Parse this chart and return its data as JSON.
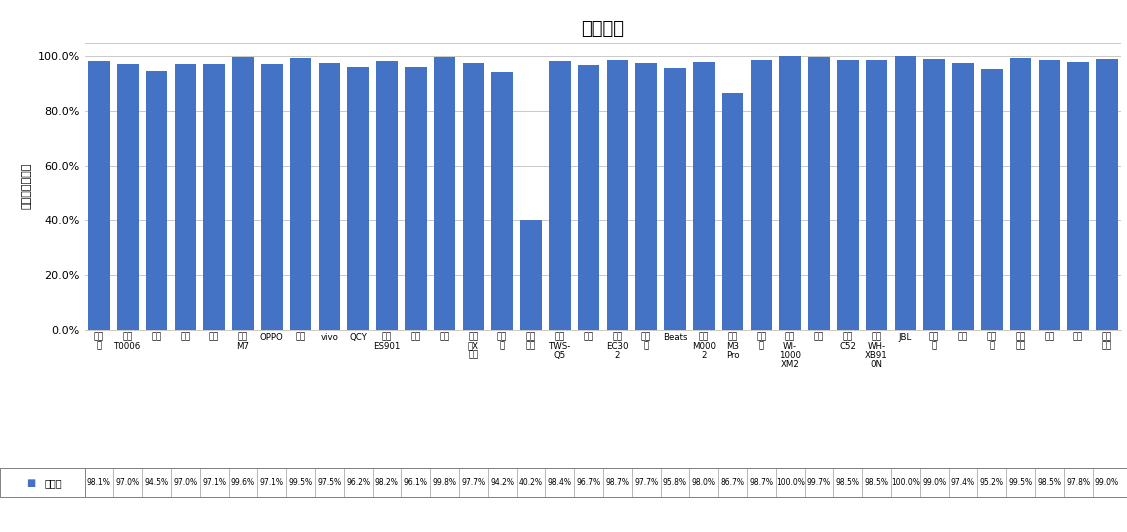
{
  "title": "通话降噪",
  "ylabel": "主观测试正确率",
  "categories": [
    "漫步\n者",
    "华为\nT0006",
    "苹果",
    "小米",
    "倍思",
    "酷狗\nM7",
    "OPPO",
    "荣耀",
    "vivo",
    "QCY",
    "万魔\nES901",
    "小度",
    "雷蛇",
    "漫步\n者X\n芯心",
    "潮客\n能",
    "科大\n讯飞",
    "纽曼\nTWS-\nQ5",
    "三星",
    "万魔\nEC30\n2",
    "搜波\n明",
    "Beats",
    "华为\nM000\n2",
    "酷狗\nM3\nPro",
    "爱国\n者",
    "索尼\nWI-\n1000\nXM2",
    "山水",
    "纽曼\nC52",
    "索尼\nWH-\nXB91\n0N",
    "JBL",
    "飞利\n浦",
    "联想",
    "铁三\n角",
    "森海\n塞尔",
    "博士",
    "索爱",
    "西伯\n利亚"
  ],
  "values": [
    98.1,
    97.0,
    94.5,
    97.0,
    97.1,
    99.6,
    97.1,
    99.5,
    97.5,
    96.2,
    98.2,
    96.1,
    99.8,
    97.7,
    94.2,
    40.2,
    98.4,
    96.7,
    98.7,
    97.7,
    95.8,
    98.0,
    86.7,
    98.7,
    100.0,
    99.7,
    98.5,
    98.5,
    100.0,
    99.0,
    97.4,
    95.2,
    99.5,
    98.5,
    97.8,
    99.0
  ],
  "bar_color": "#4472C4",
  "legend_label": "正确率",
  "legend_color": "#4472C4",
  "yticks": [
    0,
    20,
    40,
    60,
    80,
    100
  ],
  "ytick_labels": [
    "0.0%",
    "20.0%",
    "40.0%",
    "60.0%",
    "80.0%",
    "100.0%"
  ],
  "grid_color": "#C0C0C0",
  "table_border_color": "#808080"
}
